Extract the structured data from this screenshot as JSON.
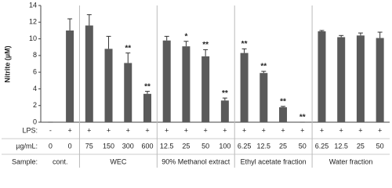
{
  "chart_data": {
    "type": "bar",
    "ylabel": "Nitrite (µM)",
    "ylim": [
      0,
      14
    ],
    "yticks": [
      0,
      2,
      4,
      6,
      8,
      10,
      12,
      14
    ],
    "color": "#5a5a5a",
    "row_labels": {
      "lps": "LPS:",
      "dose": "µg/mL:",
      "sample": "Sample:"
    },
    "groups": [
      {
        "name": "cont.",
        "lps": [
          "-",
          "+"
        ],
        "categories": [
          "0",
          "0"
        ],
        "values": [
          0,
          11.0
        ],
        "errors": [
          0,
          1.4
        ],
        "annotations": [
          null,
          null
        ]
      },
      {
        "name": "WEC",
        "lps": [
          "+",
          "+",
          "+",
          "+"
        ],
        "categories": [
          "75",
          "150",
          "300",
          "600"
        ],
        "values": [
          11.6,
          8.8,
          7.1,
          3.4
        ],
        "errors": [
          1.3,
          1.5,
          1.2,
          0.3
        ],
        "annotations": [
          null,
          null,
          "**",
          "**"
        ]
      },
      {
        "name": "90% Methanol extract",
        "lps": [
          "+",
          "+",
          "+",
          "+"
        ],
        "categories": [
          "12.5",
          "25",
          "50",
          "100"
        ],
        "values": [
          9.8,
          9.1,
          7.9,
          2.6
        ],
        "errors": [
          0.5,
          0.6,
          0.8,
          0.3
        ],
        "annotations": [
          null,
          "*",
          "**",
          "**"
        ]
      },
      {
        "name": "Ethyl acetate fraction",
        "lps": [
          "+",
          "+",
          "+",
          "+"
        ],
        "categories": [
          "6.25",
          "12.5",
          "25",
          "50"
        ],
        "values": [
          8.3,
          5.9,
          1.8,
          0
        ],
        "errors": [
          0.5,
          0.2,
          0.1,
          0
        ],
        "annotations": [
          "**",
          "**",
          "**",
          "**"
        ]
      },
      {
        "name": "Water fraction",
        "lps": [
          "+",
          "+",
          "+",
          "+"
        ],
        "categories": [
          "6.25",
          "12.5",
          "25",
          "50"
        ],
        "values": [
          10.9,
          10.2,
          10.4,
          10.1
        ],
        "errors": [
          0.1,
          0.2,
          0.3,
          0.7
        ],
        "annotations": [
          null,
          null,
          null,
          null
        ]
      }
    ]
  }
}
